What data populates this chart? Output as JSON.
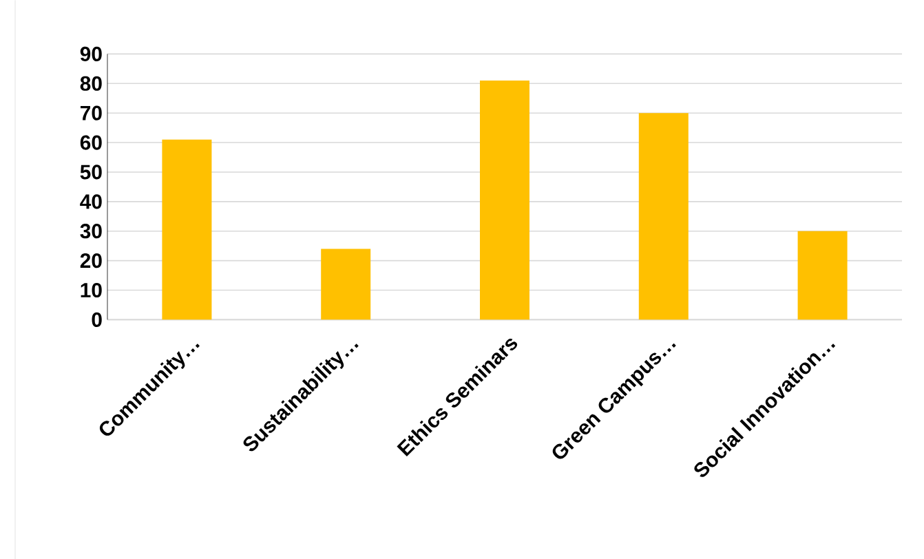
{
  "chart_data": {
    "type": "bar",
    "categories": [
      "Community…",
      "Sustainability…",
      "Ethics Seminars",
      "Green Campus…",
      "Social Innovation…"
    ],
    "values": [
      61,
      24,
      81,
      70,
      30
    ],
    "color": "#ffc000",
    "ylim": [
      0,
      90
    ],
    "yticks": [
      0,
      10,
      20,
      30,
      40,
      50,
      60,
      70,
      80,
      90
    ],
    "grid": "y"
  }
}
